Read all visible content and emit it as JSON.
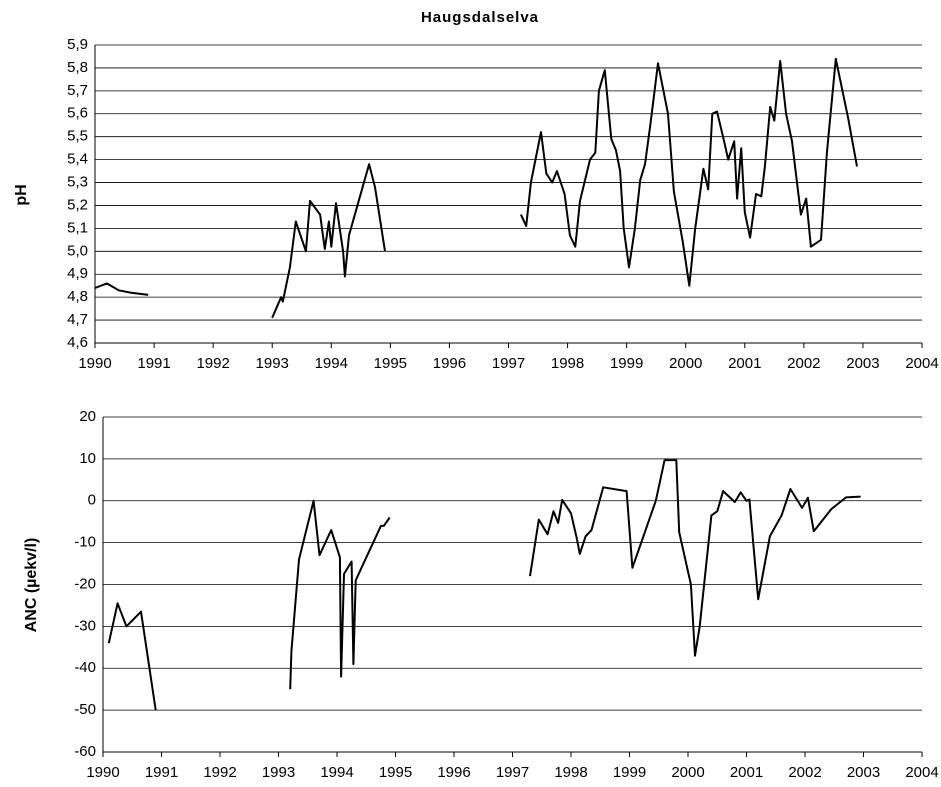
{
  "chart_data": [
    {
      "type": "line",
      "title": "Haugsdalselva",
      "y_label": "pH",
      "grid": true,
      "x": [
        1990.0,
        1990.2,
        1990.4,
        1990.6,
        1990.9,
        1992.0,
        1993.0,
        1993.15,
        1993.18,
        1993.3,
        1993.4,
        1993.57,
        1993.64,
        1993.81,
        1993.89,
        1993.96,
        1994.0,
        1994.08,
        1994.2,
        1994.23,
        1994.3,
        1994.64,
        1994.74,
        1994.91,
        1996.0,
        1997.21,
        1997.3,
        1997.38,
        1997.55,
        1997.64,
        1997.74,
        1997.82,
        1997.95,
        1998.04,
        1998.13,
        1998.21,
        1998.38,
        1998.47,
        1998.53,
        1998.63,
        1998.74,
        1998.82,
        1998.89,
        1998.95,
        1999.04,
        1999.14,
        1999.23,
        1999.31,
        1999.4,
        1999.53,
        1999.7,
        1999.8,
        1999.95,
        2000.06,
        2000.16,
        2000.3,
        2000.38,
        2000.45,
        2000.53,
        2000.65,
        2000.72,
        2000.82,
        2000.87,
        2000.94,
        2001.0,
        2001.09,
        2001.19,
        2001.28,
        2001.34,
        2001.43,
        2001.5,
        2001.6,
        2001.7,
        2001.8,
        2001.95,
        2002.04,
        2002.12,
        2002.29,
        2002.39,
        2002.54,
        2002.75,
        2002.9
      ],
      "series": [
        {
          "color": "#000000",
          "values": [
            4.84,
            4.86,
            4.83,
            4.82,
            4.81,
            null,
            4.71,
            4.8,
            4.78,
            4.93,
            5.13,
            5.0,
            5.22,
            5.16,
            5.01,
            5.13,
            5.02,
            5.21,
            5.0,
            4.89,
            5.07,
            5.38,
            5.28,
            5.0,
            null,
            5.16,
            5.11,
            5.3,
            5.52,
            5.34,
            5.3,
            5.35,
            5.25,
            5.07,
            5.02,
            5.22,
            5.4,
            5.43,
            5.7,
            5.79,
            5.49,
            5.44,
            5.35,
            5.1,
            4.93,
            5.1,
            5.31,
            5.38,
            5.55,
            5.82,
            5.6,
            5.26,
            5.04,
            4.85,
            5.1,
            5.36,
            5.27,
            5.6,
            5.61,
            5.48,
            5.4,
            5.48,
            5.23,
            5.45,
            5.17,
            5.06,
            5.25,
            5.24,
            5.37,
            5.63,
            5.57,
            5.83,
            5.6,
            5.48,
            5.16,
            5.23,
            5.02,
            5.05,
            5.43,
            5.84,
            5.58,
            5.37
          ]
        }
      ],
      "xlim": [
        1990,
        2004
      ],
      "xticks": [
        1990,
        1991,
        1992,
        1993,
        1994,
        1995,
        1996,
        1997,
        1998,
        1999,
        2000,
        2001,
        2002,
        2003,
        2004
      ],
      "ylim": [
        4.6,
        5.9
      ],
      "yticks": [
        {
          "value": 4.6,
          "label": "4,6"
        },
        {
          "value": 4.7,
          "label": "4,7"
        },
        {
          "value": 4.8,
          "label": "4,8"
        },
        {
          "value": 4.9,
          "label": "4,9"
        },
        {
          "value": 5.0,
          "label": "5,0"
        },
        {
          "value": 5.1,
          "label": "5,1"
        },
        {
          "value": 5.2,
          "label": "5,2"
        },
        {
          "value": 5.3,
          "label": "5,3"
        },
        {
          "value": 5.4,
          "label": "5,4"
        },
        {
          "value": 5.5,
          "label": "5,5"
        },
        {
          "value": 5.6,
          "label": "5,6"
        },
        {
          "value": 5.7,
          "label": "5,7"
        },
        {
          "value": 5.8,
          "label": "5,8"
        },
        {
          "value": 5.9,
          "label": "5,9"
        }
      ]
    },
    {
      "type": "line",
      "y_label": "ANC (µekv/l)",
      "grid": true,
      "x": [
        1990.1,
        1990.25,
        1990.4,
        1990.65,
        1990.9,
        1992.0,
        1993.2,
        1993.22,
        1993.35,
        1993.6,
        1993.7,
        1993.9,
        1994.05,
        1994.07,
        1994.12,
        1994.25,
        1994.28,
        1994.32,
        1994.75,
        1994.8,
        1994.9,
        1996.0,
        1997.3,
        1997.45,
        1997.6,
        1997.7,
        1997.78,
        1997.85,
        1998.0,
        1998.1,
        1998.15,
        1998.25,
        1998.35,
        1998.55,
        1998.95,
        1999.05,
        1999.45,
        1999.6,
        1999.8,
        1999.85,
        2000.05,
        2000.12,
        2000.2,
        2000.4,
        2000.5,
        2000.6,
        2000.8,
        2000.9,
        2001.0,
        2001.05,
        2001.2,
        2001.4,
        2001.6,
        2001.75,
        2001.95,
        2002.05,
        2002.15,
        2002.45,
        2002.7,
        2002.95
      ],
      "series": [
        {
          "color": "#000000",
          "values": [
            -34,
            -24.5,
            -30,
            -26.5,
            -50,
            null,
            -45,
            -36,
            -14,
            0,
            -13,
            -7,
            -13.5,
            -42,
            -17.5,
            -14.5,
            -39,
            -19,
            -6,
            -6,
            -4,
            null,
            -18,
            -4.5,
            -8,
            -2.5,
            -5.3,
            0.2,
            -3,
            -9,
            -12.7,
            -8.5,
            -7,
            3.2,
            2.3,
            -16,
            0,
            9.7,
            9.7,
            -7.5,
            -20,
            -37,
            -30,
            -3.5,
            -2.5,
            2.3,
            -0.3,
            2,
            0,
            0.3,
            -23.5,
            -8.5,
            -3.5,
            2.8,
            -1.7,
            0.7,
            -7.3,
            -2,
            0.8,
            1
          ]
        }
      ],
      "xlim": [
        1990,
        2004
      ],
      "xticks": [
        1990,
        1991,
        1992,
        1993,
        1994,
        1995,
        1996,
        1997,
        1998,
        1999,
        2000,
        2001,
        2002,
        2003,
        2004
      ],
      "ylim": [
        -60,
        20
      ],
      "yticks": [
        -60,
        -50,
        -40,
        -30,
        -20,
        -10,
        0,
        10,
        20
      ]
    }
  ]
}
